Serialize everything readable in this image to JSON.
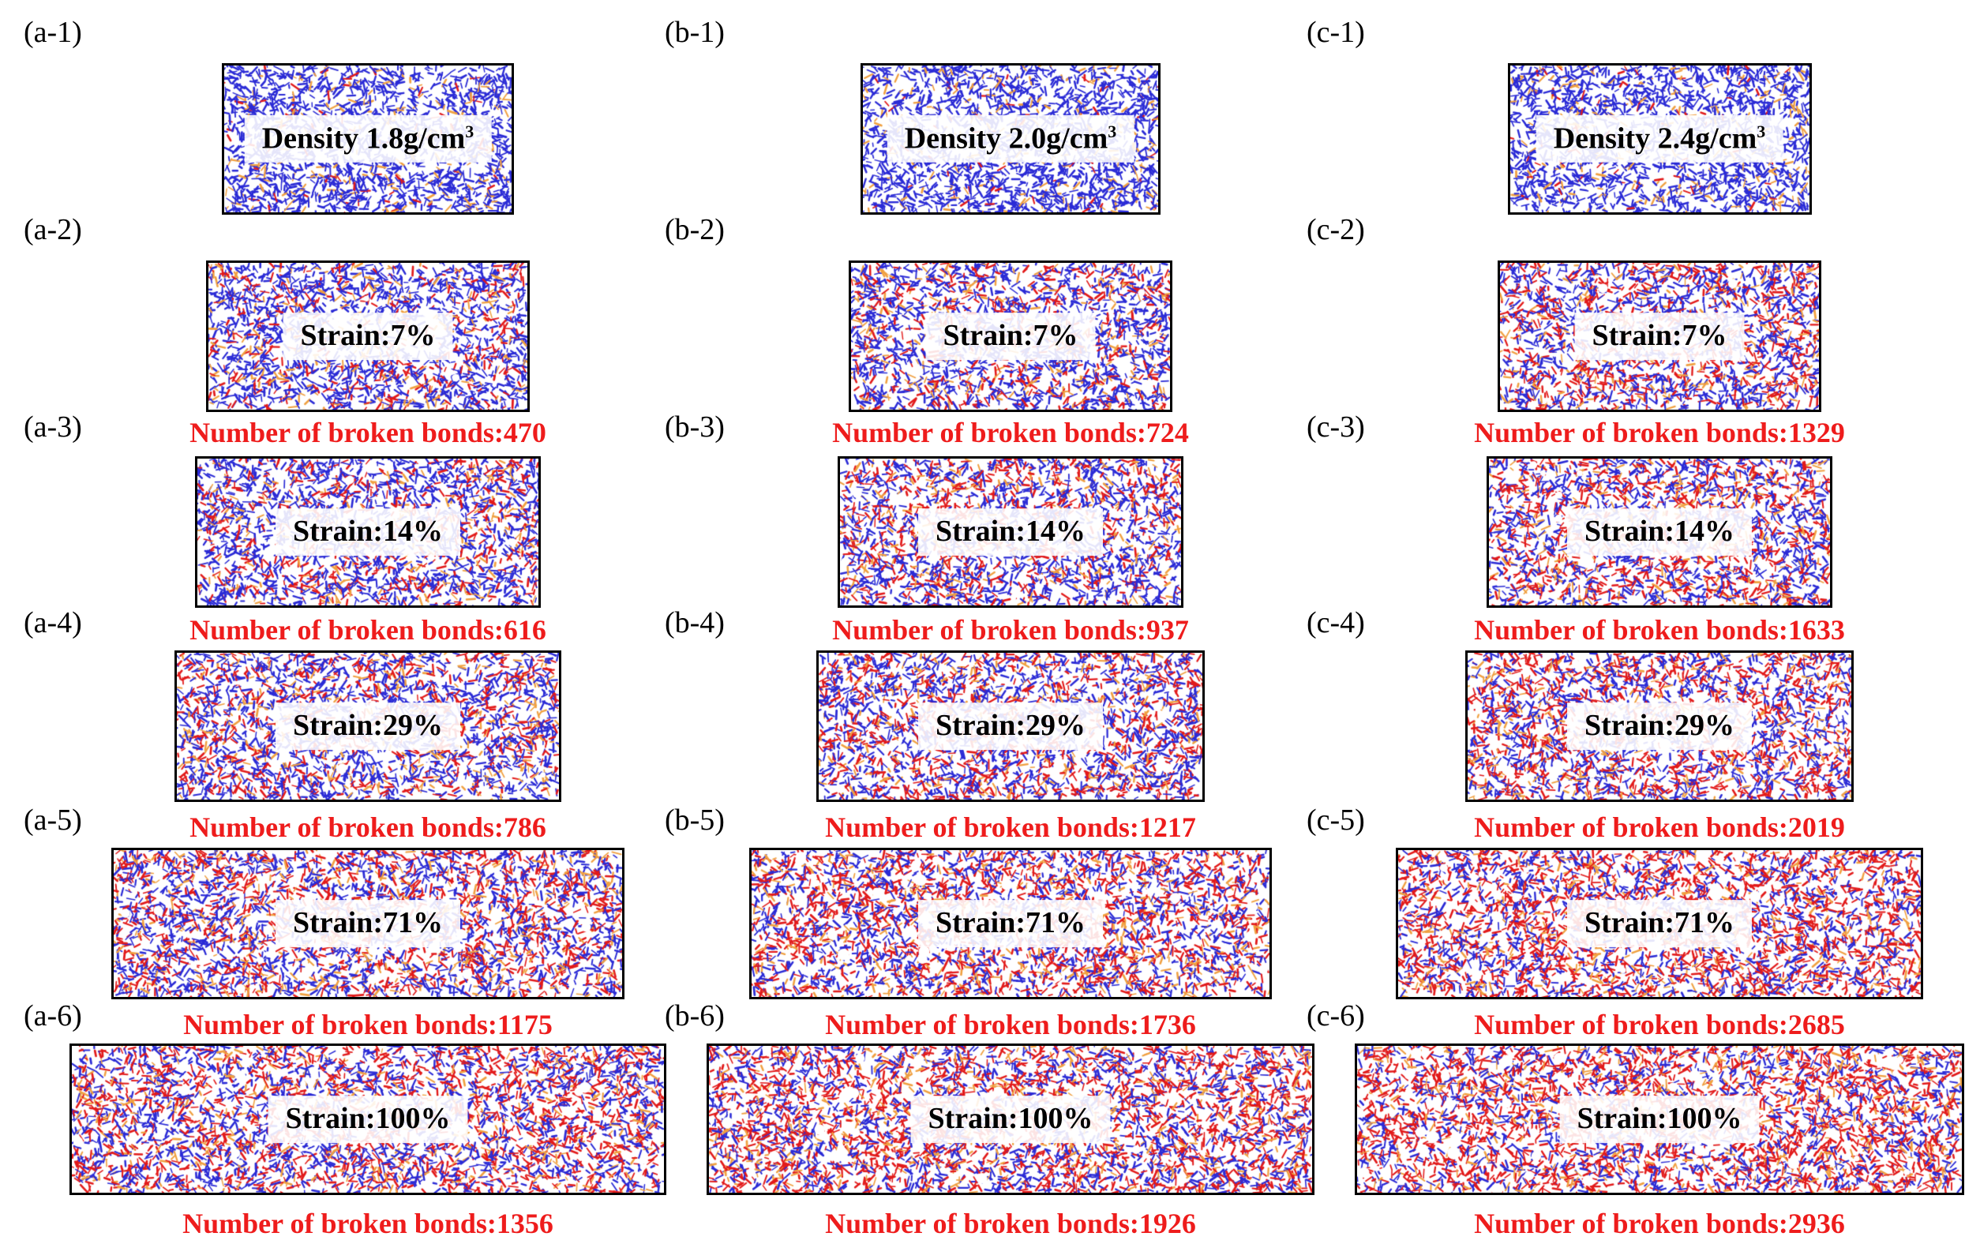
{
  "colors": {
    "bond_blue": "#2b2bd6",
    "bond_red": "#e21a1a",
    "bond_orange": "#f0a040",
    "broken_bonds_text": "#ee1c1c"
  },
  "columns": [
    {
      "id": "a",
      "panels": [
        {
          "label": "(a-1)",
          "title": "Density 1.8g/cm",
          "title_sup": "3",
          "damage": 0.05
        },
        {
          "label": "(a-2)",
          "title": "Strain:7%",
          "damage": 0.3,
          "broken_bonds": "Number of broken  bonds:470"
        },
        {
          "label": "(a-3)",
          "title": "Strain:14%",
          "damage": 0.36,
          "broken_bonds": "Number of broken  bonds:616"
        },
        {
          "label": "(a-4)",
          "title": "Strain:29%",
          "damage": 0.42,
          "broken_bonds": "Number of broken  bonds:786"
        },
        {
          "label": "(a-5)",
          "title": "Strain:71%",
          "damage": 0.52,
          "broken_bonds": "Number of broken  bonds:1175"
        },
        {
          "label": "(a-6)",
          "title": "Strain:100%",
          "damage": 0.58,
          "broken_bonds": "Number of broken  bonds:1356"
        }
      ]
    },
    {
      "id": "b",
      "panels": [
        {
          "label": "(b-1)",
          "title": "Density 2.0g/cm",
          "title_sup": "3",
          "damage": 0.05
        },
        {
          "label": "(b-2)",
          "title": "Strain:7%",
          "damage": 0.38,
          "broken_bonds": "Number of broken  bonds:724"
        },
        {
          "label": "(b-3)",
          "title": "Strain:14%",
          "damage": 0.45,
          "broken_bonds": "Number of broken  bonds:937"
        },
        {
          "label": "(b-4)",
          "title": "Strain:29%",
          "damage": 0.52,
          "broken_bonds": "Number of broken  bonds:1217"
        },
        {
          "label": "(b-5)",
          "title": "Strain:71%",
          "damage": 0.62,
          "broken_bonds": "Number of broken  bonds:1736"
        },
        {
          "label": "(b-6)",
          "title": "Strain:100%",
          "damage": 0.66,
          "broken_bonds": "Number of broken  bonds:1926"
        }
      ]
    },
    {
      "id": "c",
      "panels": [
        {
          "label": "(c-1)",
          "title": "Density 2.4g/cm",
          "title_sup": "3",
          "damage": 0.05
        },
        {
          "label": "(c-2)",
          "title": "Strain:7%",
          "damage": 0.5,
          "broken_bonds": "Number of broken  bonds:1329"
        },
        {
          "label": "(c-3)",
          "title": "Strain:14%",
          "damage": 0.56,
          "broken_bonds": "Number of broken  bonds:1633"
        },
        {
          "label": "(c-4)",
          "title": "Strain:29%",
          "damage": 0.63,
          "broken_bonds": "Number of broken  bonds:2019"
        },
        {
          "label": "(c-5)",
          "title": "Strain:71%",
          "damage": 0.72,
          "broken_bonds": "Number of broken  bonds:2685"
        },
        {
          "label": "(c-6)",
          "title": "Strain:100%",
          "damage": 0.76,
          "broken_bonds": "Number of broken  bonds:2936"
        }
      ]
    }
  ]
}
